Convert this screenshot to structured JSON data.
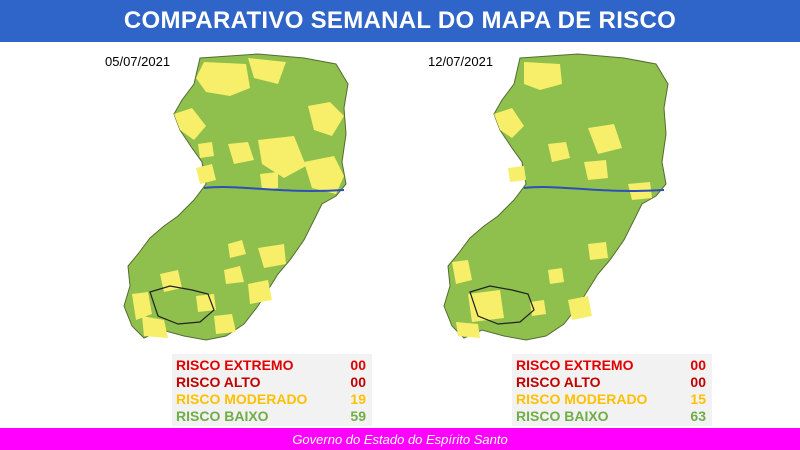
{
  "title": "COMPARATIVO SEMANAL DO MAPA DE RISCO",
  "colors": {
    "header_bg": "#2f64c8",
    "footer_bg": "#ff00ff",
    "risk_extremo": "#e00000",
    "risk_alto": "#c00000",
    "risk_moderado": "#ffc000",
    "risk_baixo": "#70ad47",
    "map_green": "#8fbf4d",
    "map_yellow": "#f7ef6a",
    "river": "#2e4fb8"
  },
  "panels": [
    {
      "date": "05/07/2021",
      "map_icon": "espirito-santo-risk-map",
      "legend": [
        {
          "label": "RISCO EXTREMO",
          "value": "00",
          "color": "#e00000"
        },
        {
          "label": "RISCO ALTO",
          "value": "00",
          "color": "#c00000"
        },
        {
          "label": "RISCO MODERADO",
          "value": "19",
          "color": "#ffc000"
        },
        {
          "label": "RISCO BAIXO",
          "value": "59",
          "color": "#70ad47"
        }
      ]
    },
    {
      "date": "12/07/2021",
      "map_icon": "espirito-santo-risk-map",
      "legend": [
        {
          "label": "RISCO EXTREMO",
          "value": "00",
          "color": "#e00000"
        },
        {
          "label": "RISCO ALTO",
          "value": "00",
          "color": "#c00000"
        },
        {
          "label": "RISCO MODERADO",
          "value": "15",
          "color": "#ffc000"
        },
        {
          "label": "RISCO BAIXO",
          "value": "63",
          "color": "#70ad47"
        }
      ]
    }
  ],
  "footer": "Governo do Estado do Espírito Santo"
}
